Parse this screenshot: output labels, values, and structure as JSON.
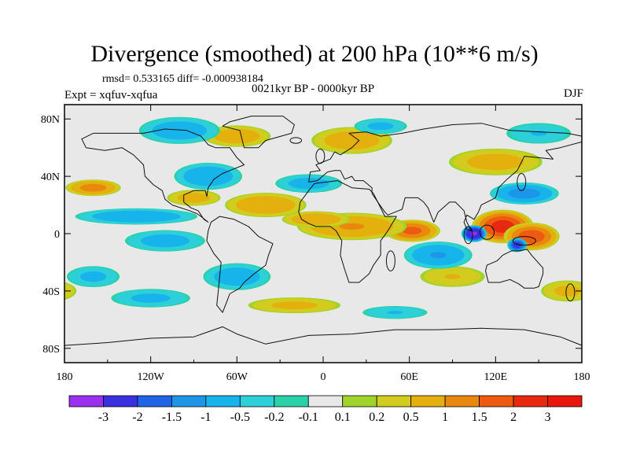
{
  "chart_data": {
    "type": "heatmap",
    "title": "Divergence (smoothed) at 200 hPa (10**6 m/s)",
    "stats_text": "rmsd= 0.533165 diff= -0.000938184",
    "period": "0021kyr BP - 0000kyr BP",
    "experiment": "Expt = xqfuv-xqfua",
    "season": "DJF",
    "x_ticks": [
      "180",
      "120W",
      "60W",
      "0",
      "60E",
      "120E",
      "180"
    ],
    "y_ticks": [
      "80N",
      "40N",
      "0",
      "40S",
      "80S"
    ],
    "xlim": [
      -180,
      180
    ],
    "ylim": [
      -90,
      90
    ],
    "colorbar": {
      "labels": [
        "-3",
        "-2",
        "-1.5",
        "-1",
        "-0.5",
        "-0.2",
        "-0.1",
        "0.1",
        "0.2",
        "0.5",
        "1",
        "1.5",
        "2",
        "3"
      ],
      "colors": [
        "#9b30f0",
        "#3a30e0",
        "#1f64e6",
        "#1e96e8",
        "#17b4ec",
        "#2dcfd8",
        "#29d2a8",
        "#e8e8e8",
        "#a0d42a",
        "#d2cc1e",
        "#e3b00e",
        "#e8880f",
        "#ee5a10",
        "#e82810",
        "#e8160c"
      ]
    },
    "features": [
      {
        "type": "positive",
        "lon": 125,
        "lat": 5,
        "rlon": 22,
        "rlat": 12,
        "v": 2.2
      },
      {
        "type": "positive",
        "lon": 145,
        "lat": -2,
        "rlon": 20,
        "rlat": 10,
        "v": 1.8
      },
      {
        "type": "positive",
        "lon": 62,
        "lat": 2,
        "rlon": 20,
        "rlat": 8,
        "v": 1.6
      },
      {
        "type": "positive",
        "lon": 20,
        "lat": 5,
        "rlon": 40,
        "rlat": 10,
        "v": 1.0
      },
      {
        "type": "positive",
        "lon": -160,
        "lat": 32,
        "rlon": 20,
        "rlat": 6,
        "v": 1.2
      },
      {
        "type": "positive",
        "lon": -40,
        "lat": 20,
        "rlon": 30,
        "rlat": 9,
        "v": 0.9
      },
      {
        "type": "positive",
        "lon": -5,
        "lat": 10,
        "rlon": 25,
        "rlat": 6,
        "v": 0.9
      },
      {
        "type": "positive",
        "lon": -60,
        "lat": 68,
        "rlon": 25,
        "rlat": 8,
        "v": 0.8
      },
      {
        "type": "positive",
        "lon": 20,
        "lat": 65,
        "rlon": 30,
        "rlat": 10,
        "v": 0.8
      },
      {
        "type": "positive",
        "lon": 120,
        "lat": 50,
        "rlon": 35,
        "rlat": 10,
        "v": 0.7
      },
      {
        "type": "positive",
        "lon": -90,
        "lat": 25,
        "rlon": 20,
        "rlat": 6,
        "v": 0.7
      },
      {
        "type": "positive",
        "lon": -20,
        "lat": -50,
        "rlon": 35,
        "rlat": 6,
        "v": 0.6
      },
      {
        "type": "positive",
        "lon": 170,
        "lat": -40,
        "rlon": 20,
        "rlat": 8,
        "v": 0.6
      },
      {
        "type": "positive",
        "lon": 90,
        "lat": -30,
        "rlon": 25,
        "rlat": 8,
        "v": 0.5
      },
      {
        "type": "negative",
        "lon": 105,
        "lat": 0,
        "rlon": 9,
        "rlat": 6,
        "v": -3.0
      },
      {
        "type": "negative",
        "lon": 135,
        "lat": -8,
        "rlon": 7,
        "rlat": 5,
        "v": -2.2
      },
      {
        "type": "negative",
        "lon": 80,
        "lat": -15,
        "rlon": 25,
        "rlat": 10,
        "v": -1.0
      },
      {
        "type": "negative",
        "lon": 140,
        "lat": 28,
        "rlon": 25,
        "rlat": 8,
        "v": -1.2
      },
      {
        "type": "negative",
        "lon": -130,
        "lat": 12,
        "rlon": 45,
        "rlat": 6,
        "v": -0.9
      },
      {
        "type": "negative",
        "lon": -110,
        "lat": -5,
        "rlon": 30,
        "rlat": 8,
        "v": -0.7
      },
      {
        "type": "negative",
        "lon": -60,
        "lat": -30,
        "rlon": 25,
        "rlat": 10,
        "v": -0.8
      },
      {
        "type": "negative",
        "lon": -80,
        "lat": 40,
        "rlon": 25,
        "rlat": 10,
        "v": -0.9
      },
      {
        "type": "negative",
        "lon": -10,
        "lat": 35,
        "rlon": 25,
        "rlat": 7,
        "v": -0.7
      },
      {
        "type": "negative",
        "lon": -100,
        "lat": 72,
        "rlon": 30,
        "rlat": 10,
        "v": -0.8
      },
      {
        "type": "negative",
        "lon": 40,
        "lat": 75,
        "rlon": 20,
        "rlat": 6,
        "v": -0.6
      },
      {
        "type": "negative",
        "lon": -120,
        "lat": -45,
        "rlon": 30,
        "rlat": 7,
        "v": -0.6
      },
      {
        "type": "negative",
        "lon": -160,
        "lat": -30,
        "rlon": 20,
        "rlat": 8,
        "v": -0.6
      },
      {
        "type": "negative",
        "lon": 150,
        "lat": 70,
        "rlon": 25,
        "rlat": 8,
        "v": -0.5
      },
      {
        "type": "negative",
        "lon": 50,
        "lat": -55,
        "rlon": 25,
        "rlat": 5,
        "v": -0.5
      }
    ]
  }
}
